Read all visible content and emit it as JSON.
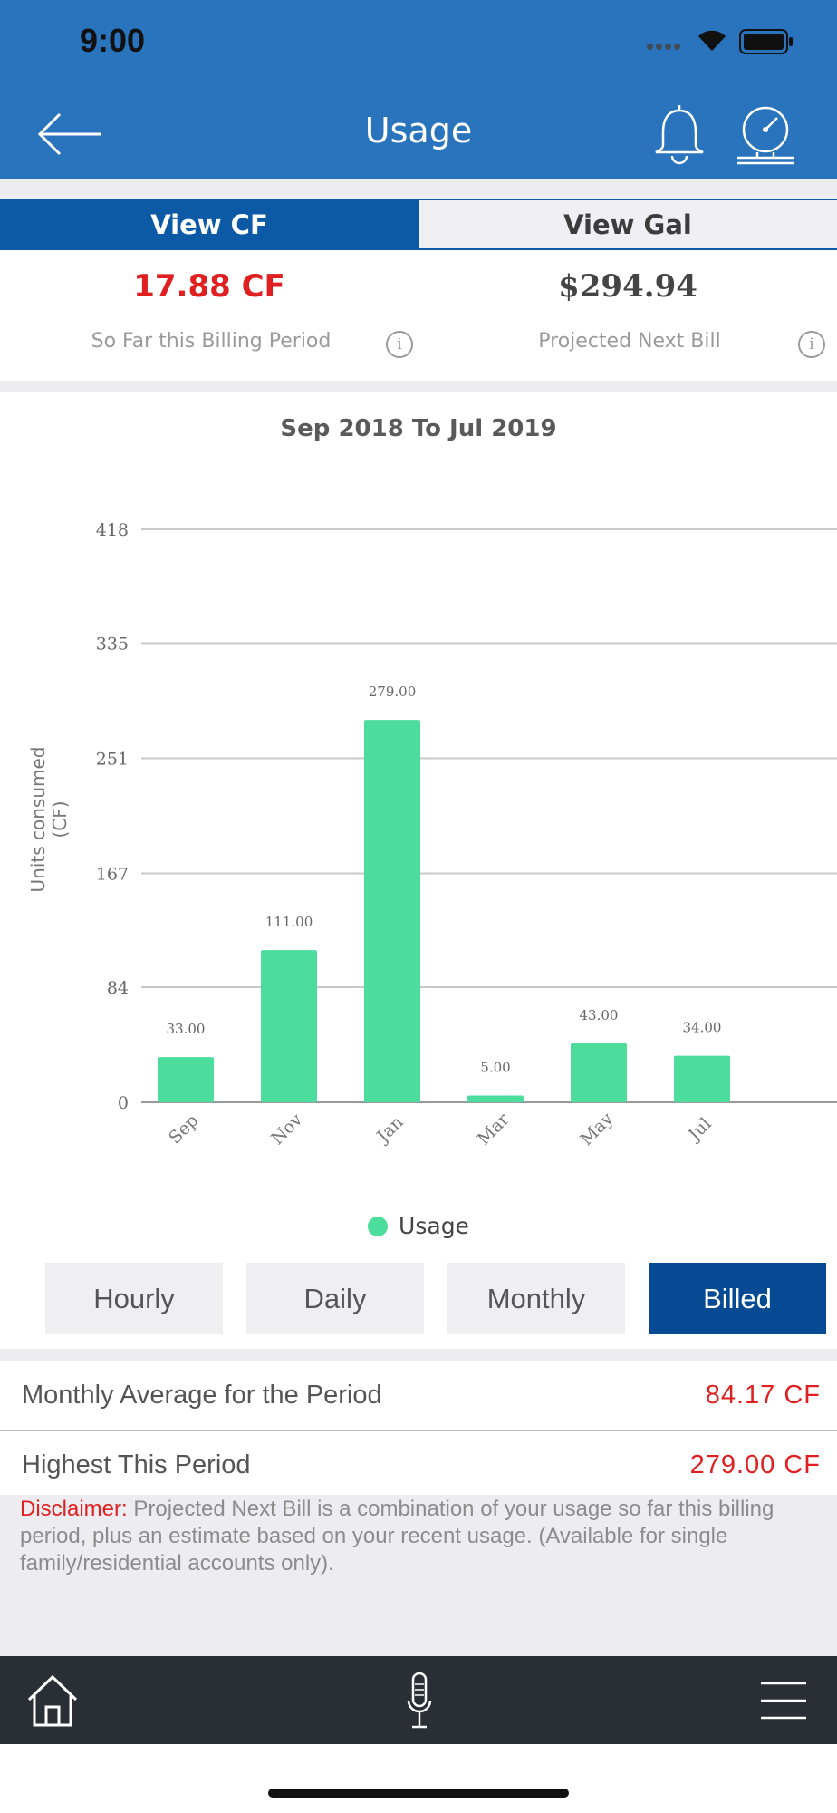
{
  "status_bar": {
    "time": "9:00"
  },
  "header": {
    "title": "Usage"
  },
  "icons": {
    "back": "back-arrow-icon",
    "bell": "bell-icon",
    "meter": "meter-icon",
    "info": "info-icon",
    "home": "home-icon",
    "mic": "microphone-icon",
    "menu": "hamburger-menu-icon"
  },
  "units_toggle": {
    "cf_label": "View CF",
    "gal_label": "View Gal",
    "selected": "View CF"
  },
  "summary": {
    "so_far_value": "17.88 CF",
    "so_far_label": "So Far this Billing Period",
    "projected_value": "$294.94",
    "projected_label": "Projected Next Bill",
    "info_glyph": "i"
  },
  "chart_data": {
    "type": "bar",
    "title": "Sep 2018 To Jul 2019",
    "ylabel": "Units consumed (CF)",
    "xlabel": "",
    "categories": [
      "Sep",
      "Nov",
      "Jan",
      "Mar",
      "May",
      "Jul"
    ],
    "series": [
      {
        "name": "Usage",
        "values": [
          33.0,
          111.0,
          279.0,
          5.0,
          43.0,
          34.0
        ]
      }
    ],
    "value_labels": [
      "33.00",
      "111.00",
      "279.00",
      "5.00",
      "43.00",
      "34.00"
    ],
    "yticks": [
      0,
      84,
      167,
      251,
      335,
      418
    ],
    "ylim": [
      0,
      418
    ],
    "grid": true,
    "legend": "bottom",
    "bar_color": "#4cdc9c"
  },
  "range_buttons": [
    {
      "label": "Hourly",
      "active": false
    },
    {
      "label": "Daily",
      "active": false
    },
    {
      "label": "Monthly",
      "active": false
    },
    {
      "label": "Billed",
      "active": true
    }
  ],
  "stats": {
    "average_label": "Monthly Average for the Period",
    "average_value": "84.17 CF",
    "highest_label": "Highest This Period",
    "highest_value": "279.00 CF"
  },
  "disclaimer": {
    "prefix": "Disclaimer:",
    "text": "Projected Next Bill is a combination of your usage so far this billing period, plus an estimate based on your recent usage. (Available for single family/residential accounts only)."
  },
  "colors": {
    "header_blue": "#2a74bd",
    "active_blue": "#0c5aa6",
    "billed_blue": "#064a94",
    "accent_red": "#e02020",
    "bar_green": "#4cdc9c"
  }
}
